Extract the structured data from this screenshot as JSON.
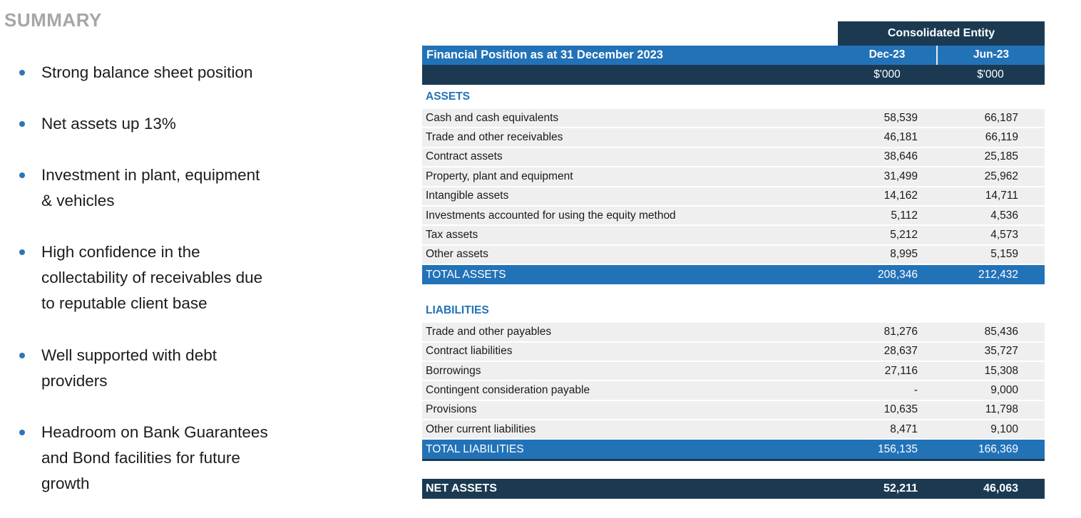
{
  "summary": {
    "title": "SUMMARY",
    "bullets": [
      {
        "text": "Strong balance sheet position"
      },
      {
        "text": "Net assets up 13%"
      },
      {
        "text": "Investment in plant, equipment\n& vehicles"
      },
      {
        "text": "High confidence in the\ncollectability of receivables due\nto reputable client base"
      },
      {
        "text": "Well supported with debt\nproviders"
      },
      {
        "text": "Headroom on Bank Guarantees\nand Bond facilities for future\ngrowth"
      }
    ]
  },
  "table": {
    "entity_header": "Consolidated Entity",
    "title": "Financial Position as at 31 December 2023",
    "columns": [
      "Dec-23",
      "Jun-23"
    ],
    "units": [
      "$'000",
      "$'000"
    ],
    "sections": [
      {
        "header": "ASSETS",
        "rows": [
          {
            "label": "Cash and cash equivalents",
            "values": [
              "58,539",
              "66,187"
            ]
          },
          {
            "label": "Trade and other receivables",
            "values": [
              "46,181",
              "66,119"
            ]
          },
          {
            "label": "Contract assets",
            "values": [
              "38,646",
              "25,185"
            ]
          },
          {
            "label": "Property, plant and equipment",
            "values": [
              "31,499",
              "25,962"
            ]
          },
          {
            "label": "Intangible assets",
            "values": [
              "14,162",
              "14,711"
            ]
          },
          {
            "label": "Investments accounted for using the equity method",
            "values": [
              "5,112",
              "4,536"
            ]
          },
          {
            "label": "Tax assets",
            "values": [
              "5,212",
              "4,573"
            ]
          },
          {
            "label": "Other assets",
            "values": [
              "8,995",
              "5,159"
            ]
          }
        ],
        "total": {
          "label": "TOTAL ASSETS",
          "values": [
            "208,346",
            "212,432"
          ]
        }
      },
      {
        "header": "LIABILITIES",
        "rows": [
          {
            "label": "Trade and other payables",
            "values": [
              "81,276",
              "85,436"
            ]
          },
          {
            "label": "Contract liabilities",
            "values": [
              "28,637",
              "35,727"
            ]
          },
          {
            "label": "Borrowings",
            "values": [
              "27,116",
              "15,308"
            ]
          },
          {
            "label": "Contingent consideration payable",
            "values": [
              "-",
              "9,000"
            ]
          },
          {
            "label": "Provisions",
            "values": [
              "10,635",
              "11,798"
            ]
          },
          {
            "label": "Other current liabilities",
            "values": [
              "8,471",
              "9,100"
            ]
          }
        ],
        "total": {
          "label": "TOTAL LIABILITIES",
          "values": [
            "156,135",
            "166,369"
          ]
        }
      }
    ],
    "net_assets": {
      "label": "NET ASSETS",
      "values": [
        "52,211",
        "46,063"
      ]
    }
  },
  "colors": {
    "accent_blue": "#2272b8",
    "dark_navy": "#1b3a52",
    "row_gray": "#efefef",
    "summary_gray": "#a6a6a6",
    "bullet_blue": "#2e75b6"
  }
}
